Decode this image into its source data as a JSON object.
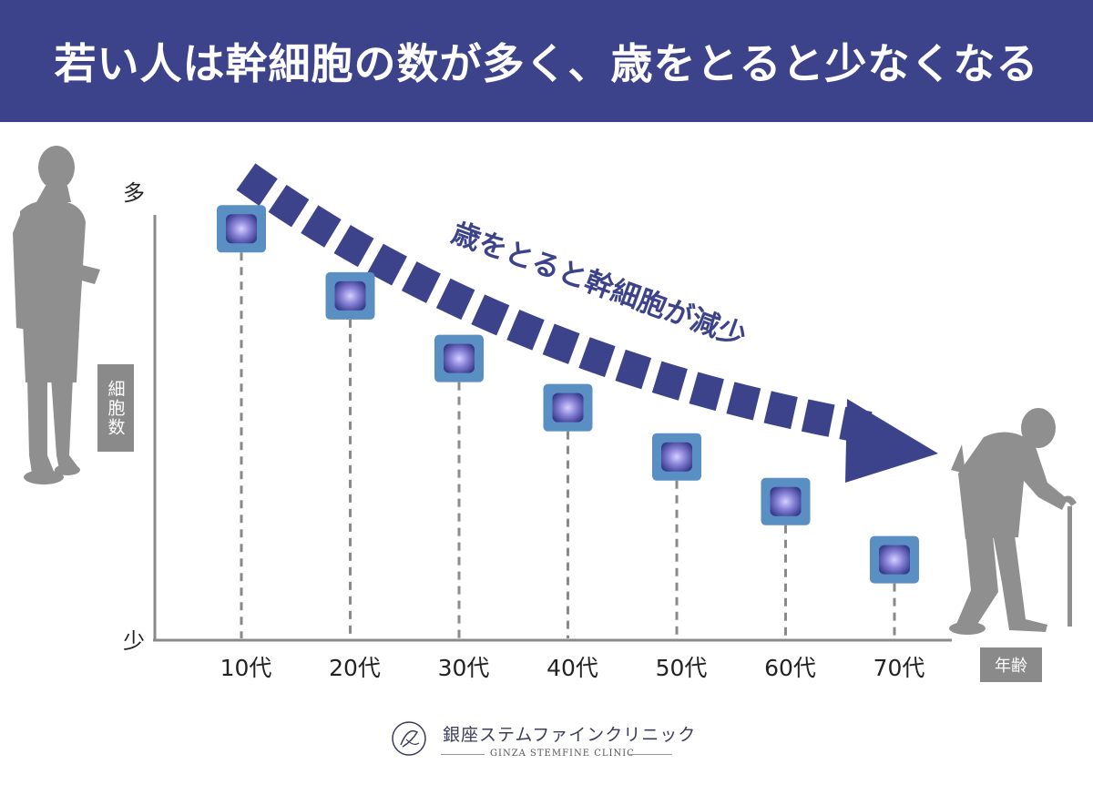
{
  "header": {
    "title": "若い人は幹細胞の数が多く、歳をとると少なくなる"
  },
  "chart_data": {
    "type": "scatter",
    "categories": [
      "10代",
      "20代",
      "30代",
      "40代",
      "50代",
      "60代",
      "70代"
    ],
    "values": [
      92,
      77,
      63,
      52,
      41,
      31,
      18
    ],
    "ylim": [
      0,
      100
    ],
    "y_top_label": "多",
    "y_bottom_label": "少",
    "ylabel": "細胞数",
    "xlabel": "年齢",
    "annotation": "歳をとると幹細胞が減少",
    "colors": {
      "marker": "#5a8fc4",
      "marker_inner": "#3c3f8e",
      "arrow": "#3d438b",
      "axis": "#8a8a8a",
      "figure": "#8f8f8f"
    }
  },
  "footer": {
    "clinic_name": "銀座ステムファインクリニック",
    "clinic_name_en": "GINZA STEMFINE CLINIC"
  }
}
